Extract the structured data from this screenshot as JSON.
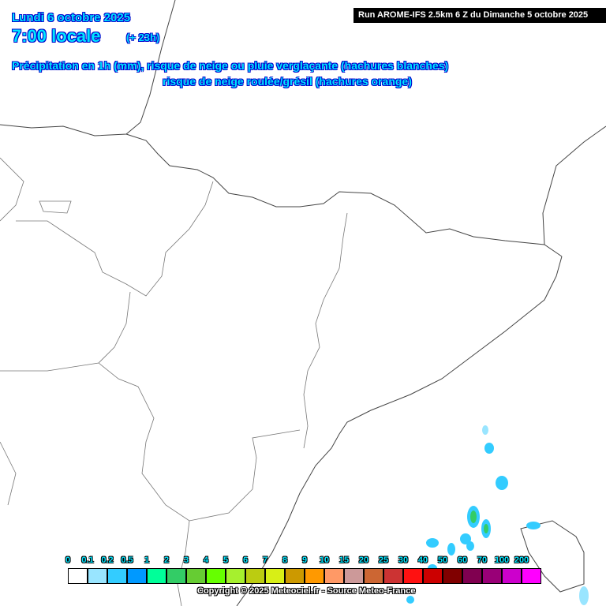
{
  "header": {
    "date": "Lundi 6 octobre 2025",
    "time": "7:00 locale",
    "lead": "(+ 23h)",
    "title_line1": "Précipitation en 1h (mm), risque de neige ou pluie verglaçante (hachures blanches)",
    "title_line2": "risque de neige roulée/grésil (hachures orange)",
    "run": "Run AROME-IFS 2.5km 6 Z du Dimanche 5 octobre 2025"
  },
  "legend": {
    "labels": [
      "0",
      "0.1",
      "0.2",
      "0.5",
      "1",
      "2",
      "3",
      "4",
      "5",
      "6",
      "7",
      "8",
      "9",
      "10",
      "15",
      "20",
      "25",
      "30",
      "40",
      "50",
      "60",
      "70",
      "100",
      "200"
    ],
    "colors": [
      "#ffffff",
      "#99e5ff",
      "#33ccff",
      "#0099ff",
      "#00ff99",
      "#33cc66",
      "#66cc33",
      "#66ff00",
      "#a6f02e",
      "#bbcc11",
      "#d8ef16",
      "#cc9900",
      "#ff9900",
      "#ff9966",
      "#cc9999",
      "#cc6633",
      "#cc3333",
      "#ff1111",
      "#cc0000",
      "#800000",
      "#800050",
      "#990077",
      "#cc00cc",
      "#ff00ff"
    ]
  },
  "copyright": "Copyright © 2025 Meteociel.fr - Source Meteo-France"
}
